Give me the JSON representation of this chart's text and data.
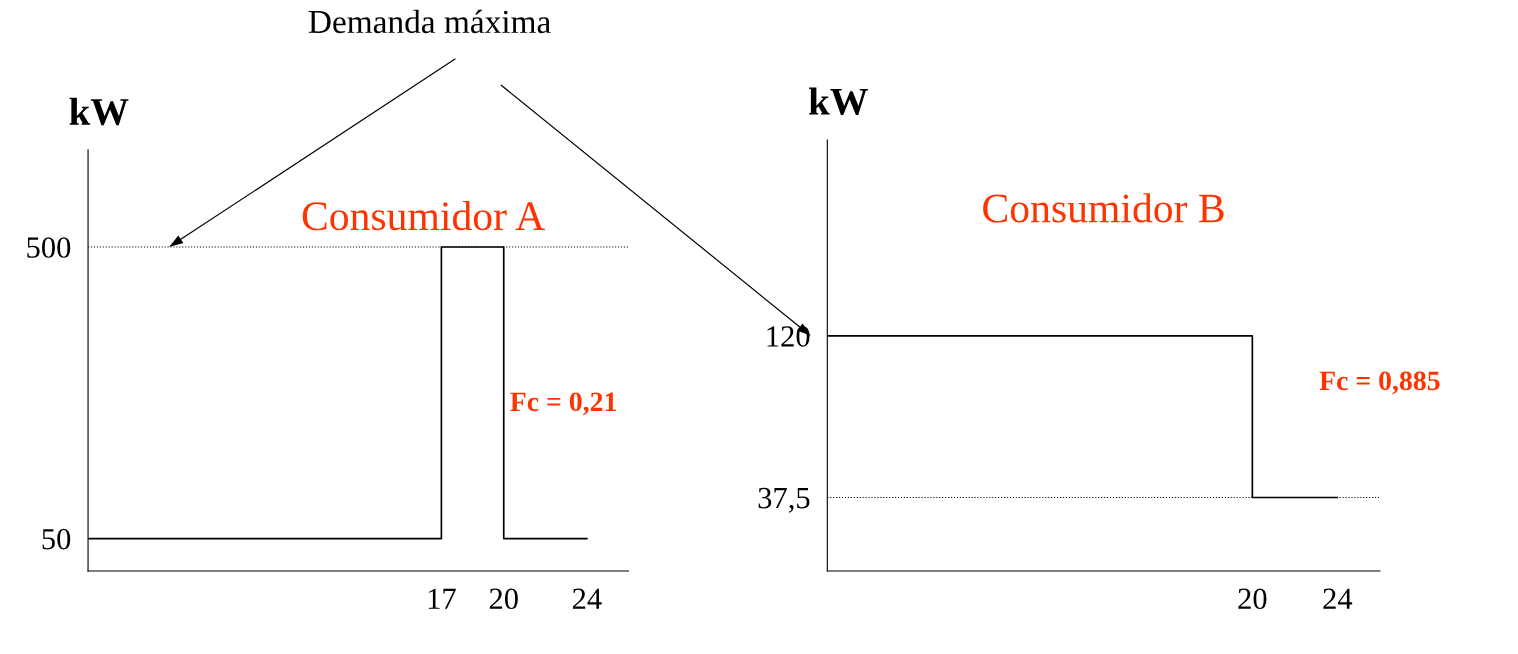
{
  "chart_data": [
    {
      "type": "step",
      "title": "Consumidor A",
      "ylabel": "kW",
      "x": [
        0,
        17,
        20,
        24
      ],
      "series": [
        {
          "color": "#000000",
          "values": [
            50,
            500,
            50,
            50
          ]
        }
      ],
      "xlim": [
        0,
        26
      ],
      "ylim": [
        0,
        650
      ],
      "xticks": [
        17,
        20,
        24
      ],
      "yticks": [
        50,
        500
      ],
      "ref_lines": [
        {
          "axis": "y",
          "value": 500,
          "line_style": "dotted"
        }
      ],
      "annotations": [
        "Demanda máxima",
        "Fc = 0,21"
      ]
    },
    {
      "type": "step",
      "title": "Consumidor B",
      "ylabel": "kW",
      "x": [
        0,
        20,
        24
      ],
      "series": [
        {
          "color": "#000000",
          "values": [
            120,
            37.5,
            37.5
          ]
        }
      ],
      "xlim": [
        0,
        26
      ],
      "ylim": [
        0,
        220
      ],
      "xticks": [
        20,
        24
      ],
      "yticks": [
        {
          "value": 37.5,
          "label": "37,5"
        },
        120
      ],
      "ref_lines": [
        {
          "axis": "y",
          "value": 37.5,
          "line_style": "dotted"
        }
      ],
      "annotations": [
        "Fc = 0,885"
      ]
    }
  ]
}
